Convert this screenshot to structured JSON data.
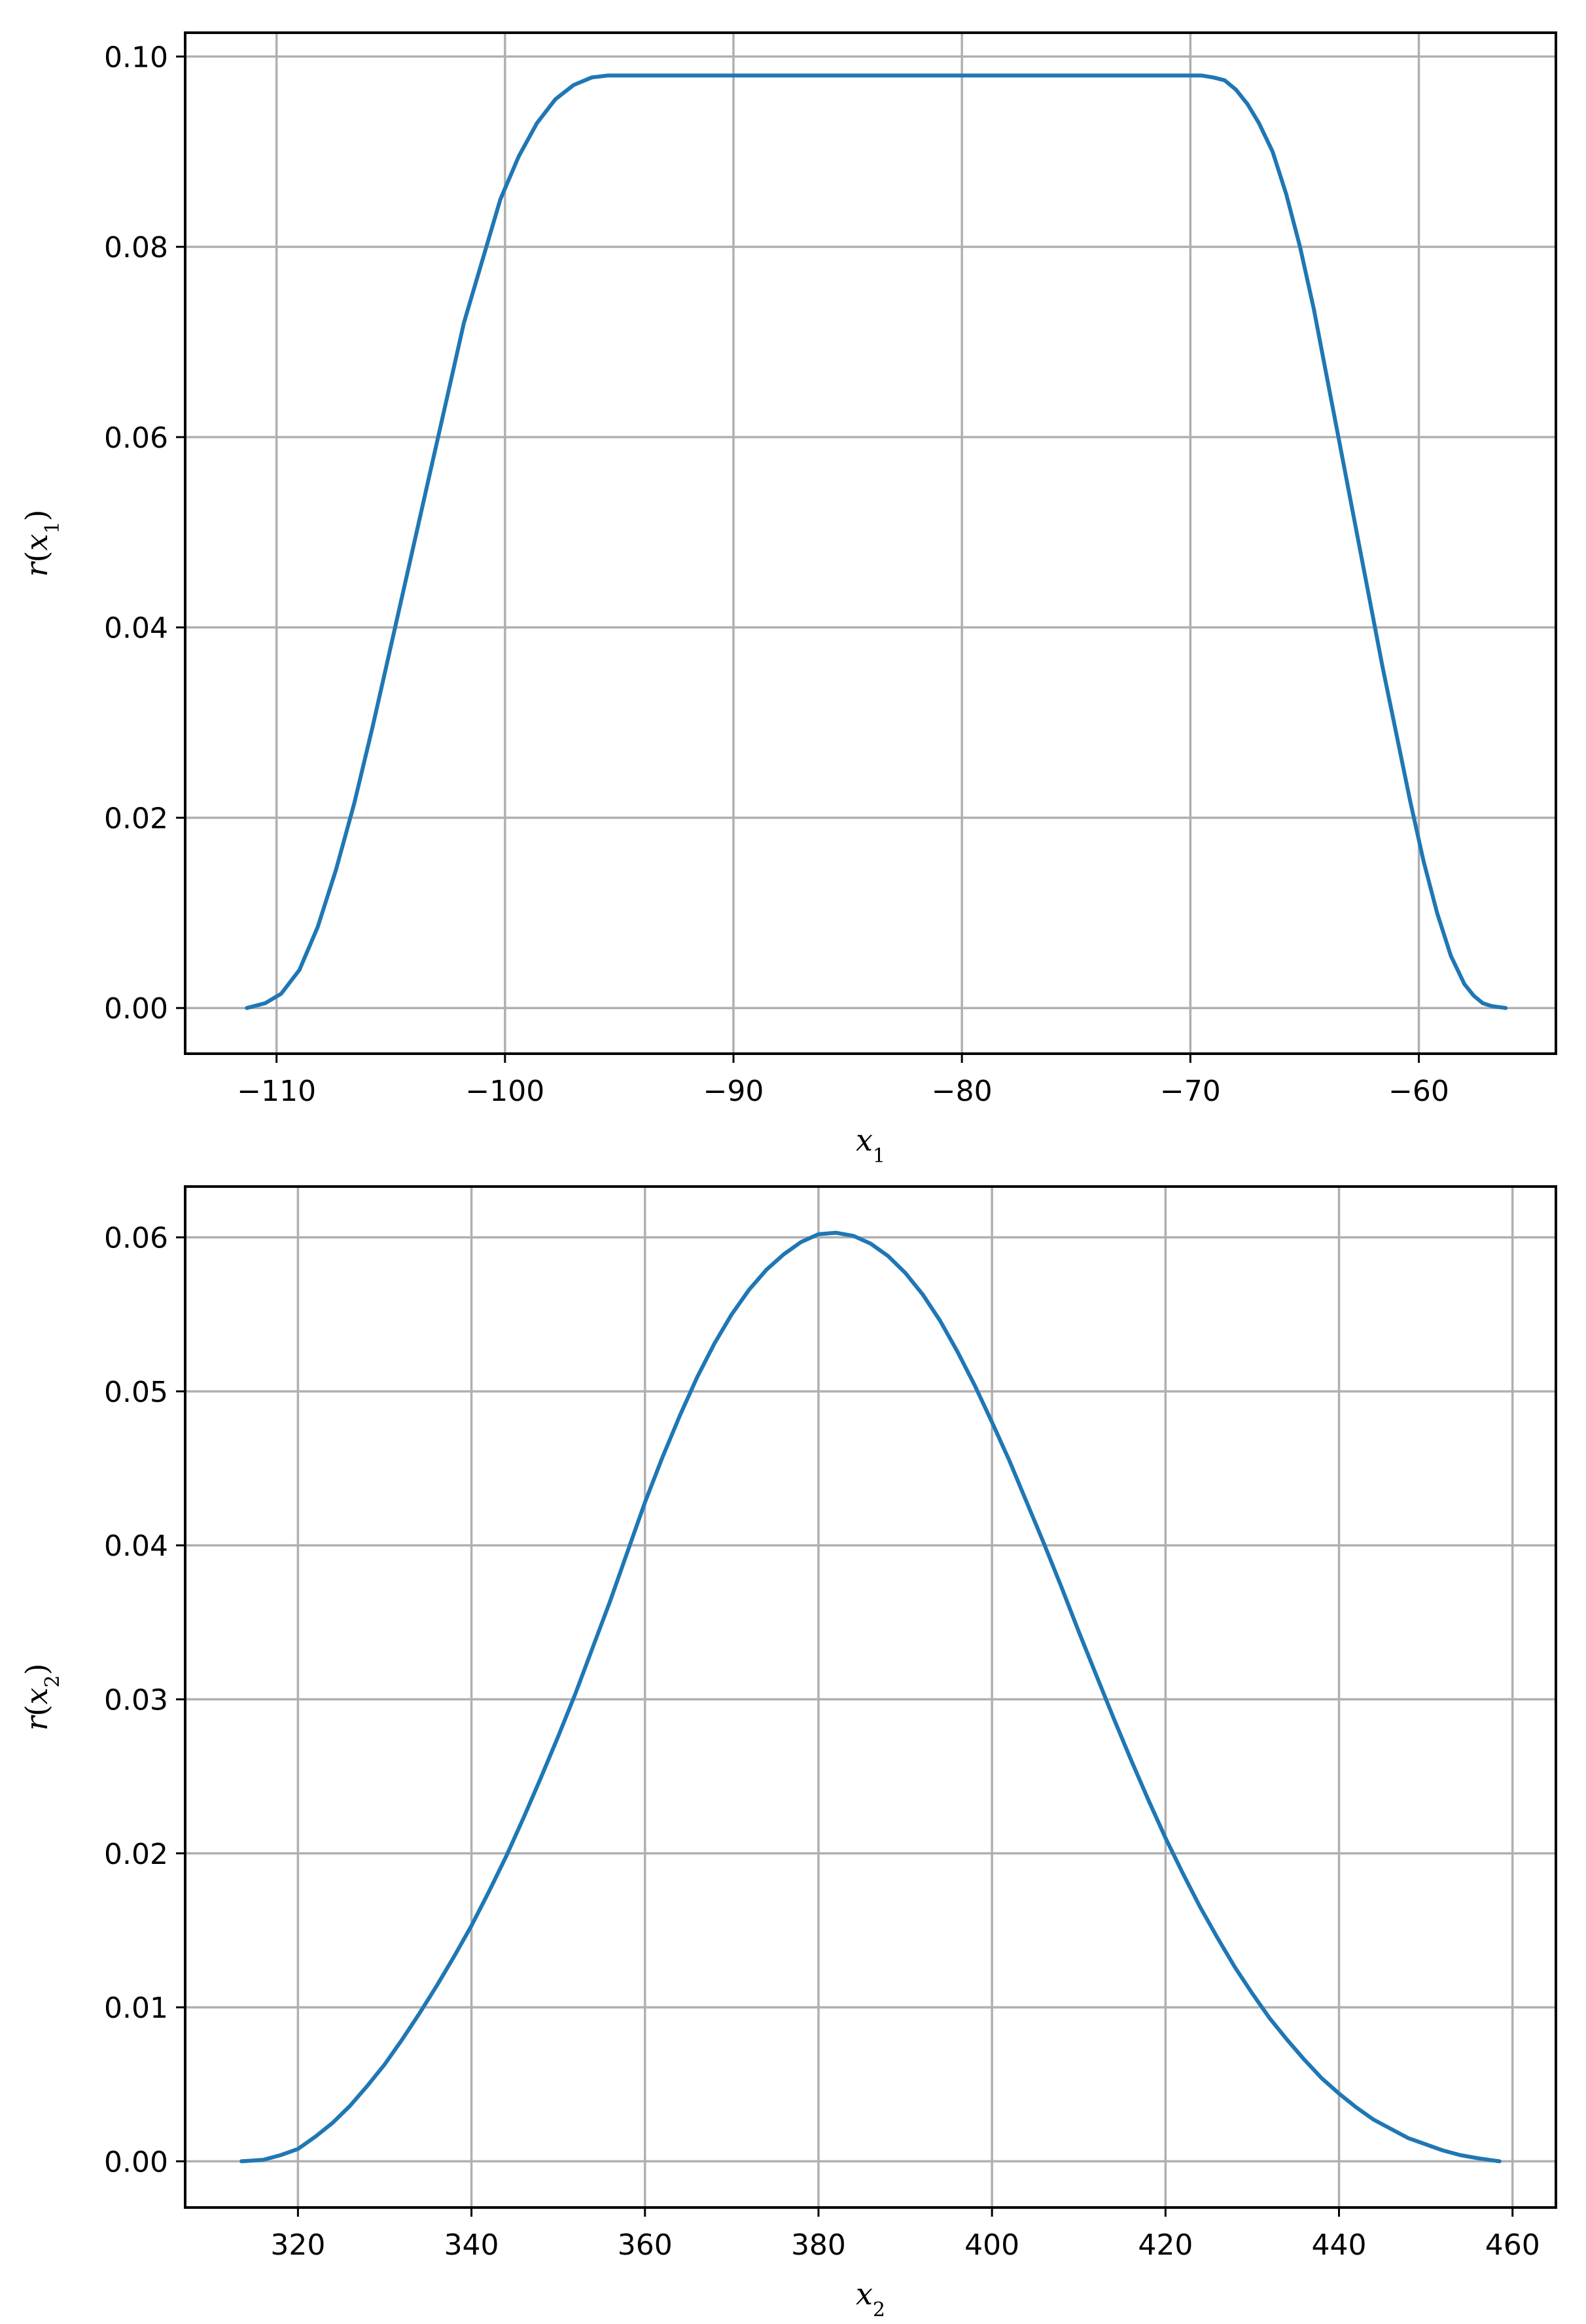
{
  "chart_data": [
    {
      "type": "line",
      "title": "",
      "xlabel": "x₁",
      "ylabel": "r(x₁)",
      "xlim": [
        -114,
        -54
      ],
      "ylim": [
        -0.0048,
        0.1025
      ],
      "xticks": [
        -110,
        -100,
        -90,
        -80,
        -70,
        -60
      ],
      "yticks": [
        0.0,
        0.02,
        0.04,
        0.06,
        0.08,
        0.1
      ],
      "ytick_format": 2,
      "grid": true,
      "color": "#1f77b4",
      "series": [
        {
          "x": [
            -111.3,
            -110.5,
            -109.8,
            -109.0,
            -108.2,
            -107.4,
            -106.6,
            -105.8,
            -105.0,
            -104.2,
            -103.4,
            -102.6,
            -101.8,
            -101.0,
            -100.2,
            -99.4,
            -98.6,
            -97.8,
            -97.0,
            -96.2,
            -95.5,
            -95.0,
            -94.5,
            -94.0,
            -93.0,
            -90.0,
            -85.0,
            -80.0,
            -75.0,
            -71.0,
            -69.5,
            -69.0,
            -68.5,
            -68.0,
            -67.5,
            -67.0,
            -66.4,
            -65.8,
            -65.2,
            -64.6,
            -64.0,
            -63.4,
            -62.8,
            -62.2,
            -61.6,
            -61.0,
            -60.4,
            -59.8,
            -59.2,
            -58.6,
            -58.0,
            -57.6,
            -57.2,
            -56.8,
            -56.2
          ],
          "y": [
            0.0,
            0.0005,
            0.0015,
            0.004,
            0.0085,
            0.0145,
            0.0215,
            0.0295,
            0.038,
            0.0465,
            0.055,
            0.0635,
            0.072,
            0.0785,
            0.085,
            0.0895,
            0.093,
            0.0955,
            0.097,
            0.0978,
            0.098,
            0.098,
            0.098,
            0.098,
            0.098,
            0.098,
            0.098,
            0.098,
            0.098,
            0.098,
            0.098,
            0.0978,
            0.0975,
            0.0965,
            0.095,
            0.093,
            0.09,
            0.0855,
            0.08,
            0.0735,
            0.066,
            0.0585,
            0.051,
            0.0435,
            0.036,
            0.029,
            0.022,
            0.0155,
            0.01,
            0.0055,
            0.0025,
            0.0013,
            0.0005,
            0.0002,
            0.0
          ]
        }
      ]
    },
    {
      "type": "line",
      "title": "",
      "xlabel": "x₂",
      "ylabel": "r(x₂)",
      "xlim": [
        307,
        465
      ],
      "ylim": [
        -0.003,
        0.0633
      ],
      "xticks": [
        320,
        340,
        360,
        380,
        400,
        420,
        440,
        460
      ],
      "yticks": [
        0.0,
        0.01,
        0.02,
        0.03,
        0.04,
        0.05,
        0.06
      ],
      "ytick_format": 2,
      "grid": true,
      "color": "#1f77b4",
      "series": [
        {
          "x": [
            313.5,
            316,
            318,
            320,
            322,
            324,
            326,
            328,
            330,
            332,
            334,
            336,
            338,
            340,
            342,
            344,
            346,
            348,
            350,
            352,
            354,
            356,
            358,
            360,
            362,
            364,
            366,
            368,
            370,
            372,
            374,
            376,
            378,
            380,
            382,
            384,
            386,
            388,
            390,
            392,
            394,
            396,
            398,
            400,
            402,
            404,
            406,
            408,
            410,
            412,
            414,
            416,
            418,
            420,
            422,
            424,
            426,
            428,
            430,
            432,
            434,
            436,
            438,
            440,
            442,
            444,
            446,
            448,
            450,
            452,
            454,
            456,
            458.5
          ],
          "y": [
            0.0,
            0.0001,
            0.0004,
            0.0008,
            0.0016,
            0.0025,
            0.0036,
            0.0049,
            0.0063,
            0.0079,
            0.0096,
            0.0114,
            0.0133,
            0.0153,
            0.0175,
            0.0198,
            0.0223,
            0.0249,
            0.0276,
            0.0304,
            0.0334,
            0.0364,
            0.0396,
            0.0428,
            0.0457,
            0.0484,
            0.0509,
            0.0531,
            0.055,
            0.0566,
            0.0579,
            0.0589,
            0.0597,
            0.0602,
            0.0603,
            0.0601,
            0.0596,
            0.0588,
            0.0577,
            0.0563,
            0.0546,
            0.0526,
            0.0504,
            0.048,
            0.0455,
            0.0428,
            0.0401,
            0.0373,
            0.0344,
            0.0316,
            0.0288,
            0.0261,
            0.0235,
            0.021,
            0.0187,
            0.0165,
            0.0145,
            0.0126,
            0.0109,
            0.0093,
            0.0079,
            0.0066,
            0.0054,
            0.0044,
            0.0035,
            0.0027,
            0.0021,
            0.0015,
            0.0011,
            0.0007,
            0.0004,
            0.0002,
            0.0
          ]
        }
      ]
    }
  ]
}
